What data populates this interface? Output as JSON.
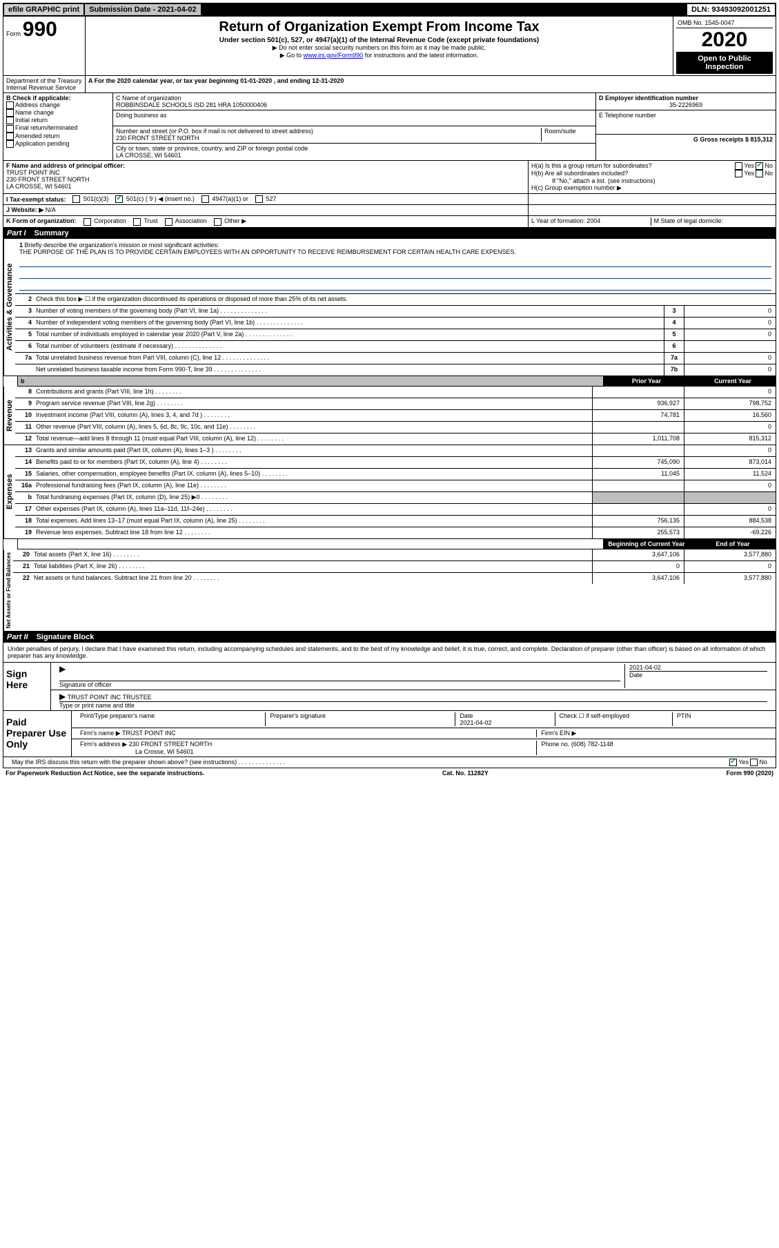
{
  "top": {
    "efile": "efile GRAPHIC print",
    "submission": "Submission Date - 2021-04-02",
    "dln": "DLN: 93493092001251"
  },
  "header": {
    "form_prefix": "Form",
    "form_num": "990",
    "title": "Return of Organization Exempt From Income Tax",
    "subtitle": "Under section 501(c), 527, or 4947(a)(1) of the Internal Revenue Code (except private foundations)",
    "note1": "▶ Do not enter social security numbers on this form as it may be made public.",
    "note2_pre": "▶ Go to ",
    "note2_link": "www.irs.gov/Form990",
    "note2_post": " for instructions and the latest information.",
    "omb": "OMB No. 1545-0047",
    "year": "2020",
    "open_public": "Open to Public Inspection",
    "dept": "Department of the Treasury\nInternal Revenue Service"
  },
  "line_a": "A For the 2020 calendar year, or tax year beginning 01-01-2020   , and ending 12-31-2020",
  "box_b": {
    "heading": "B Check if applicable:",
    "items": [
      "Address change",
      "Name change",
      "Initial return",
      "Final return/terminated",
      "Amended return",
      "Application pending"
    ]
  },
  "box_c": {
    "label": "C Name of organization",
    "name": "ROBBINSDALE SCHOOLS ISD 281 HRA 1050000406",
    "dba_label": "Doing business as",
    "street_label": "Number and street (or P.O. box if mail is not delivered to street address)",
    "room_label": "Room/suite",
    "street": "230 FRONT STREET NORTH",
    "city_label": "City or town, state or province, country, and ZIP or foreign postal code",
    "city": "LA CROSSE, WI  54601"
  },
  "box_d": {
    "label": "D Employer identification number",
    "value": "35-2226969"
  },
  "box_e": {
    "label": "E Telephone number"
  },
  "box_g": {
    "label": "G Gross receipts $ 815,312"
  },
  "box_f": {
    "label": "F  Name and address of principal officer:",
    "name": "TRUST POINT INC",
    "street": "230 FRONT STREET NORTH",
    "city": "LA CROSSE, WI  54601"
  },
  "box_h": {
    "a_label": "H(a)  Is this a group return for subordinates?",
    "b_label": "H(b)  Are all subordinates included?",
    "b_note": "If \"No,\" attach a list. (see instructions)",
    "c_label": "H(c)  Group exemption number ▶",
    "yes": "Yes",
    "no": "No"
  },
  "box_i": {
    "label": "I  Tax-exempt status:",
    "c3": "501(c)(3)",
    "c9": "501(c) ( 9 ) ◀ (insert no.)",
    "a1": "4947(a)(1) or",
    "s527": "527"
  },
  "box_j": {
    "label": "J   Website: ▶",
    "value": "N/A"
  },
  "box_k": {
    "label": "K Form of organization:",
    "corp": "Corporation",
    "trust": "Trust",
    "assoc": "Association",
    "other": "Other ▶"
  },
  "box_l": {
    "label": "L Year of formation: 2004"
  },
  "box_m": {
    "label": "M State of legal domicile:"
  },
  "part1": {
    "header_roman": "Part I",
    "header_text": "Summary",
    "q1": "Briefly describe the organization's mission or most significant activities:",
    "mission": "THE PURPOSE OF THE PLAN IS TO PROVIDE CERTAIN EMPLOYEES WITH AN OPPORTUNITY TO RECEIVE REIMBURSEMENT FOR CERTAIN HEALTH CARE EXPENSES.",
    "q2": "Check this box ▶ ☐  if the organization discontinued its operations or disposed of more than 25% of its net assets.",
    "rows_ag": [
      {
        "n": "3",
        "t": "Number of voting members of the governing body (Part VI, line 1a)",
        "box": "3",
        "v": "0"
      },
      {
        "n": "4",
        "t": "Number of independent voting members of the governing body (Part VI, line 1b)",
        "box": "4",
        "v": "0"
      },
      {
        "n": "5",
        "t": "Total number of individuals employed in calendar year 2020 (Part V, line 2a)",
        "box": "5",
        "v": "0"
      },
      {
        "n": "6",
        "t": "Total number of volunteers (estimate if necessary)",
        "box": "6",
        "v": ""
      },
      {
        "n": "7a",
        "t": "Total unrelated business revenue from Part VIII, column (C), line 12",
        "box": "7a",
        "v": "0"
      },
      {
        "n": "",
        "t": "Net unrelated business taxable income from Form 990-T, line 39",
        "box": "7b",
        "v": "0"
      }
    ],
    "col_prior": "Prior Year",
    "col_current": "Current Year",
    "rows_rev": [
      {
        "n": "8",
        "t": "Contributions and grants (Part VIII, line 1h)",
        "p": "",
        "c": "0"
      },
      {
        "n": "9",
        "t": "Program service revenue (Part VIII, line 2g)",
        "p": "936,927",
        "c": "798,752"
      },
      {
        "n": "10",
        "t": "Investment income (Part VIII, column (A), lines 3, 4, and 7d )",
        "p": "74,781",
        "c": "16,560"
      },
      {
        "n": "11",
        "t": "Other revenue (Part VIII, column (A), lines 5, 6d, 8c, 9c, 10c, and 11e)",
        "p": "",
        "c": "0"
      },
      {
        "n": "12",
        "t": "Total revenue—add lines 8 through 11 (must equal Part VIII, column (A), line 12)",
        "p": "1,011,708",
        "c": "815,312"
      }
    ],
    "rows_exp": [
      {
        "n": "13",
        "t": "Grants and similar amounts paid (Part IX, column (A), lines 1–3 )",
        "p": "",
        "c": "0"
      },
      {
        "n": "14",
        "t": "Benefits paid to or for members (Part IX, column (A), line 4)",
        "p": "745,090",
        "c": "873,014"
      },
      {
        "n": "15",
        "t": "Salaries, other compensation, employee benefits (Part IX, column (A), lines 5–10)",
        "p": "11,045",
        "c": "11,524"
      },
      {
        "n": "16a",
        "t": "Professional fundraising fees (Part IX, column (A), line 11e)",
        "p": "",
        "c": "0"
      },
      {
        "n": "b",
        "t": "Total fundraising expenses (Part IX, column (D), line 25) ▶0",
        "p": "shaded",
        "c": "shaded"
      },
      {
        "n": "17",
        "t": "Other expenses (Part IX, column (A), lines 11a–11d, 11f–24e)",
        "p": "",
        "c": "0"
      },
      {
        "n": "18",
        "t": "Total expenses. Add lines 13–17 (must equal Part IX, column (A), line 25)",
        "p": "756,135",
        "c": "884,538"
      },
      {
        "n": "19",
        "t": "Revenue less expenses. Subtract line 18 from line 12",
        "p": "255,573",
        "c": "-69,226"
      }
    ],
    "col_begin": "Beginning of Current Year",
    "col_end": "End of Year",
    "rows_net": [
      {
        "n": "20",
        "t": "Total assets (Part X, line 16)",
        "p": "3,647,106",
        "c": "3,577,880"
      },
      {
        "n": "21",
        "t": "Total liabilities (Part X, line 26)",
        "p": "0",
        "c": "0"
      },
      {
        "n": "22",
        "t": "Net assets or fund balances. Subtract line 21 from line 20",
        "p": "3,647,106",
        "c": "3,577,880"
      }
    ],
    "vlabels": {
      "ag": "Activities & Governance",
      "rev": "Revenue",
      "exp": "Expenses",
      "net": "Net Assets or Fund Balances"
    }
  },
  "part2": {
    "header_roman": "Part II",
    "header_text": "Signature Block",
    "declaration": "Under penalties of perjury, I declare that I have examined this return, including accompanying schedules and statements, and to the best of my knowledge and belief, it is true, correct, and complete. Declaration of preparer (other than officer) is based on all information of which preparer has any knowledge.",
    "sign_here": "Sign Here",
    "sig_officer": "Signature of officer",
    "sig_date": "2021-04-02",
    "date_label": "Date",
    "officer_name": "TRUST POINT INC  TRUSTEE",
    "type_label": "Type or print name and title",
    "paid_prep": "Paid Preparer Use Only",
    "prep_name_label": "Print/Type preparer's name",
    "prep_sig_label": "Preparer's signature",
    "prep_date": "2021-04-02",
    "check_self": "Check ☐  if self-employed",
    "ptin": "PTIN",
    "firm_name_label": "Firm's name    ▶",
    "firm_name": "TRUST POINT INC",
    "firm_ein": "Firm's EIN ▶",
    "firm_addr_label": "Firm's address ▶",
    "firm_addr": "230 FRONT STREET NORTH",
    "firm_city": "La Crosse, WI  54601",
    "phone_label": "Phone no. (608) 782-1148",
    "discuss": "May the IRS discuss this return with the preparer shown above? (see instructions)",
    "yes": "Yes",
    "no": "No"
  },
  "footer": {
    "left": "For Paperwork Reduction Act Notice, see the separate instructions.",
    "mid": "Cat. No. 11282Y",
    "right": "Form 990 (2020)"
  }
}
